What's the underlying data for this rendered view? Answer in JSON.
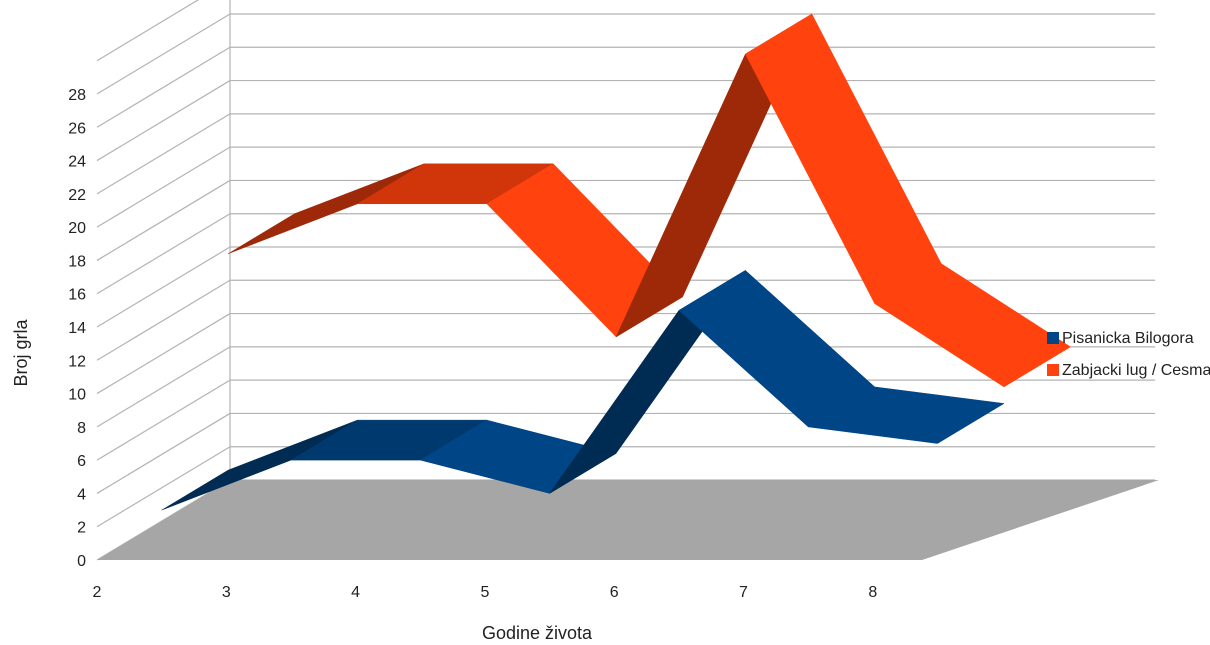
{
  "chart_data": {
    "type": "line",
    "variant": "3d-ribbon",
    "title": "",
    "xlabel": "Godine života",
    "ylabel": "Broj grla",
    "categories": [
      "2",
      "3",
      "4",
      "5",
      "6",
      "7",
      "8"
    ],
    "y_ticks": [
      "0",
      "2",
      "4",
      "6",
      "8",
      "10",
      "12",
      "14",
      "16",
      "18",
      "20",
      "22",
      "24",
      "26",
      "28"
    ],
    "ylim": [
      0,
      28
    ],
    "grid": true,
    "legend_position": "right",
    "series": [
      {
        "name": "Pisanicka Bilogora",
        "color": "#004586",
        "values": [
          3,
          6,
          6,
          4,
          15,
          8,
          7
        ]
      },
      {
        "name": "Zabjacki lug / Cesma",
        "color": "#ff420e",
        "values": [
          16,
          19,
          19,
          11,
          28,
          13,
          8
        ]
      }
    ],
    "floor_color": "#a6a6a6"
  }
}
